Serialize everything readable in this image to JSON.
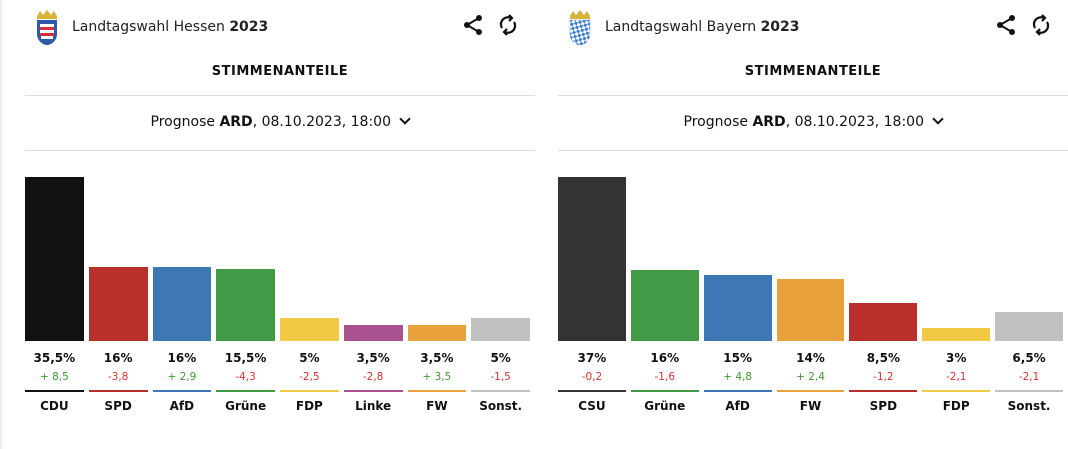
{
  "panels": [
    {
      "title": "Landtagswahl Hessen",
      "year": "2023",
      "logo": "hessen-coat-of-arms",
      "section": "STIMMENANTEILE",
      "selector": {
        "prefix": "Prognose",
        "source": "ARD",
        "suffix": ", 08.10.2023, 18:00"
      }
    },
    {
      "title": "Landtagswahl Bayern",
      "year": "2023",
      "logo": "bayern-coat-of-arms",
      "section": "STIMMENANTEILE",
      "selector": {
        "prefix": "Prognose",
        "source": "ARD",
        "suffix": ", 08.10.2023, 18:00"
      }
    }
  ],
  "chart_data": [
    {
      "type": "bar",
      "title": "",
      "categories": [
        "CDU",
        "SPD",
        "AfD",
        "Grüne",
        "FDP",
        "Linke",
        "FW",
        "Sonst."
      ],
      "values": [
        35.5,
        16,
        16,
        15.5,
        5,
        3.5,
        3.5,
        5
      ],
      "value_labels": [
        "35,5%",
        "16%",
        "16%",
        "15,5%",
        "5%",
        "3,5%",
        "3,5%",
        "5%"
      ],
      "diff_labels": [
        "+ 8,5",
        "-3,8",
        "+ 2,9",
        "-4,3",
        "-2,5",
        "-2,8",
        "+ 3,5",
        "-1,5"
      ],
      "diffs": [
        8.5,
        -3.8,
        2.9,
        -4.3,
        -2.5,
        -2.8,
        3.5,
        -1.5
      ],
      "colors": [
        "#111111",
        "#b92f2b",
        "#3f76b5",
        "#419a45",
        "#f1c945",
        "#a9508f",
        "#e9a23b",
        "#c0c0c0"
      ]
    },
    {
      "type": "bar",
      "title": "",
      "categories": [
        "CSU",
        "Grüne",
        "AfD",
        "FW",
        "SPD",
        "FDP",
        "Sonst."
      ],
      "values": [
        37,
        16,
        15,
        14,
        8.5,
        3,
        6.5
      ],
      "value_labels": [
        "37%",
        "16%",
        "15%",
        "14%",
        "8,5%",
        "3%",
        "6,5%"
      ],
      "diff_labels": [
        "-0,2",
        "-1,6",
        "+ 4,8",
        "+ 2,4",
        "-1,2",
        "-2,1",
        "-2,1"
      ],
      "diffs": [
        -0.2,
        -1.6,
        4.8,
        2.4,
        -1.2,
        -2.1,
        -2.1
      ],
      "colors": [
        "#333333",
        "#419a45",
        "#3f76b5",
        "#e9a23b",
        "#b92f2b",
        "#f1c945",
        "#c0c0c0"
      ]
    }
  ],
  "colors": {
    "positive": "#3f9a2f",
    "negative": "#d8322c"
  }
}
